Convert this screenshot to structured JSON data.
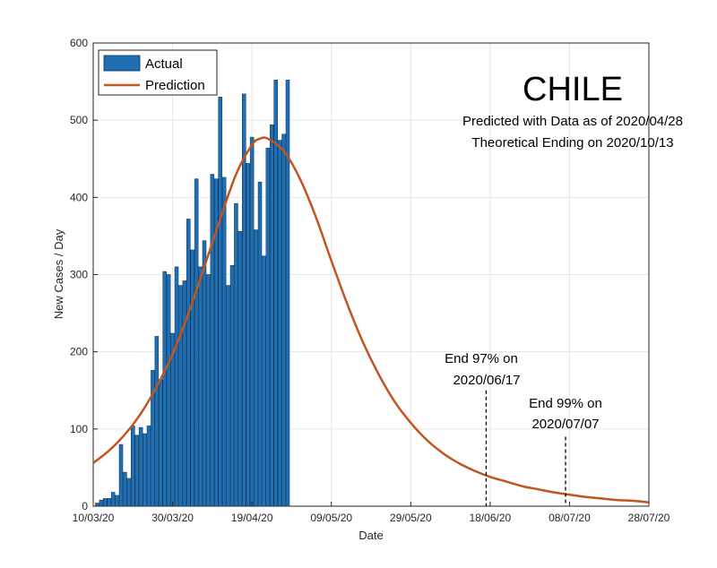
{
  "chart_data": {
    "type": "bar",
    "title": "CHILE",
    "subtitle_lines": [
      "Predicted with Data as of 2020/04/28",
      "Theoretical Ending on 2020/10/13"
    ],
    "xlabel": "Date",
    "ylabel": "New Cases / Day",
    "ylim": [
      0,
      600
    ],
    "yticks": [
      0,
      100,
      200,
      300,
      400,
      500,
      600
    ],
    "xlim": [
      "2020-03-10",
      "2020-07-28"
    ],
    "xticks": [
      {
        "date": "2020-03-10",
        "label": "10/03/20"
      },
      {
        "date": "2020-03-30",
        "label": "30/03/20"
      },
      {
        "date": "2020-04-19",
        "label": "19/04/20"
      },
      {
        "date": "2020-05-09",
        "label": "09/05/20"
      },
      {
        "date": "2020-05-29",
        "label": "29/05/20"
      },
      {
        "date": "2020-06-18",
        "label": "18/06/20"
      },
      {
        "date": "2020-07-08",
        "label": "08/07/20"
      },
      {
        "date": "2020-07-28",
        "label": "28/07/20"
      }
    ],
    "grid": true,
    "legend_position": "top-left",
    "series": [
      {
        "name": "Actual",
        "kind": "bar",
        "color": "#1f6fb4",
        "start_date": "2020-03-11",
        "values": [
          4,
          8,
          10,
          10,
          18,
          14,
          80,
          44,
          36,
          104,
          92,
          102,
          94,
          104,
          176,
          220,
          164,
          304,
          300,
          224,
          310,
          286,
          292,
          372,
          332,
          424,
          310,
          344,
          300,
          430,
          424,
          530,
          426,
          286,
          312,
          392,
          356,
          534,
          444,
          478,
          358,
          420,
          324,
          464,
          494,
          552,
          474,
          482,
          552
        ]
      },
      {
        "name": "Prediction",
        "kind": "line",
        "color": "#c2551f",
        "points": [
          [
            "2020-03-10",
            56
          ],
          [
            "2020-03-14",
            72
          ],
          [
            "2020-03-18",
            93
          ],
          [
            "2020-03-22",
            120
          ],
          [
            "2020-03-26",
            155
          ],
          [
            "2020-03-30",
            197
          ],
          [
            "2020-04-03",
            250
          ],
          [
            "2020-04-07",
            310
          ],
          [
            "2020-04-11",
            372
          ],
          [
            "2020-04-15",
            430
          ],
          [
            "2020-04-19",
            468
          ],
          [
            "2020-04-21",
            476
          ],
          [
            "2020-04-23",
            476
          ],
          [
            "2020-04-27",
            460
          ],
          [
            "2020-05-01",
            425
          ],
          [
            "2020-05-05",
            376
          ],
          [
            "2020-05-09",
            318
          ],
          [
            "2020-05-13",
            262
          ],
          [
            "2020-05-17",
            212
          ],
          [
            "2020-05-21",
            170
          ],
          [
            "2020-05-25",
            135
          ],
          [
            "2020-05-29",
            108
          ],
          [
            "2020-06-02",
            86
          ],
          [
            "2020-06-06",
            69
          ],
          [
            "2020-06-10",
            56
          ],
          [
            "2020-06-14",
            46
          ],
          [
            "2020-06-18",
            38
          ],
          [
            "2020-06-22",
            32
          ],
          [
            "2020-06-26",
            26
          ],
          [
            "2020-06-30",
            22
          ],
          [
            "2020-07-04",
            18
          ],
          [
            "2020-07-08",
            15
          ],
          [
            "2020-07-12",
            12
          ],
          [
            "2020-07-16",
            10
          ],
          [
            "2020-07-20",
            8
          ],
          [
            "2020-07-24",
            7
          ],
          [
            "2020-07-28",
            5
          ]
        ]
      }
    ],
    "annotations": [
      {
        "lines": [
          "End 97% on",
          "2020/06/17"
        ],
        "date": "2020-06-17",
        "value": 150
      },
      {
        "lines": [
          "End 99% on",
          "2020/07/07"
        ],
        "date": "2020-07-07",
        "value": 90
      }
    ]
  }
}
